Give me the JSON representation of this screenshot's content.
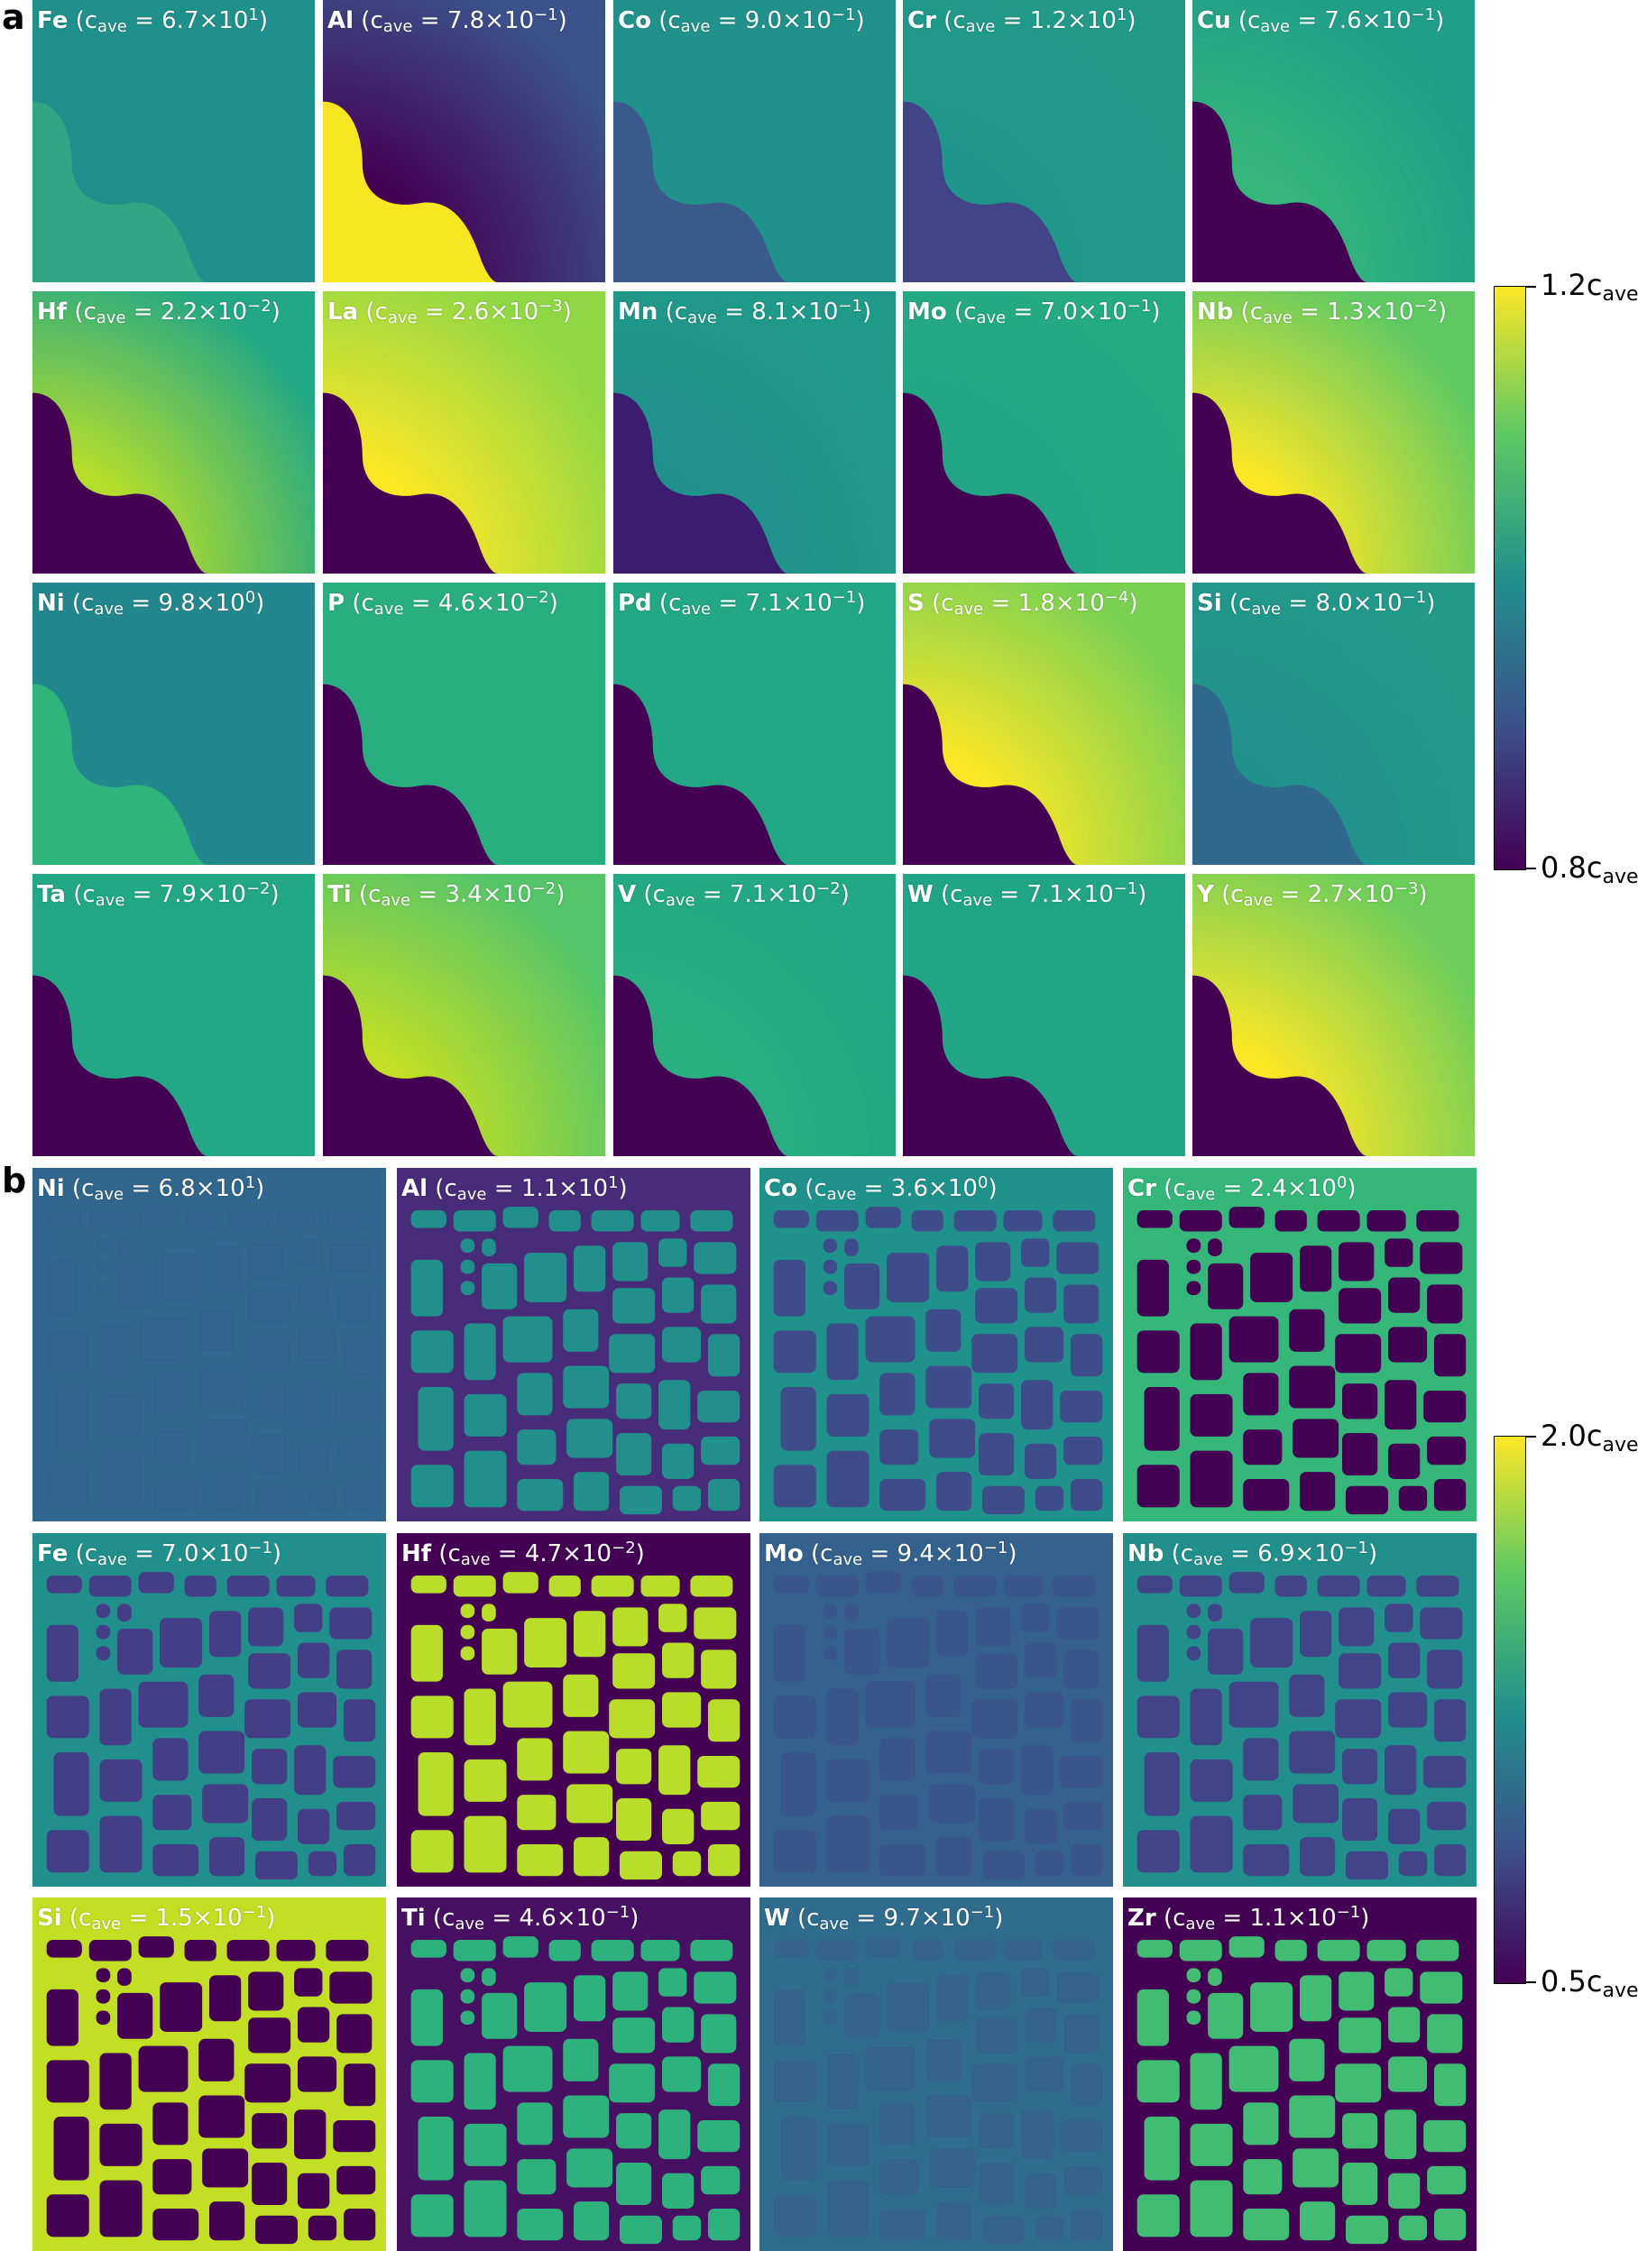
{
  "panel_a": {
    "label": "a",
    "colorbar": {
      "max_label": "1.2c",
      "min_label": "0.8c",
      "sub": "ave",
      "colormap": [
        "#440154",
        "#3b528b",
        "#21918c",
        "#5ec962",
        "#fde725"
      ]
    },
    "tiles": [
      {
        "element": "Fe",
        "mant": "6.7",
        "exp": "1",
        "pattern": "A",
        "bg": "#20908c",
        "blob": "#30a784",
        "rim": "#20908c"
      },
      {
        "element": "Al",
        "mant": "7.8",
        "exp": "−1",
        "pattern": "A",
        "bg": "#3b528b",
        "blob": "#f8e621",
        "rim": "#440154"
      },
      {
        "element": "Co",
        "mant": "9.0",
        "exp": "−1",
        "pattern": "A",
        "bg": "#21918c",
        "blob": "#3b5a8c",
        "rim": "#21918c"
      },
      {
        "element": "Cr",
        "mant": "1.2",
        "exp": "1",
        "pattern": "A",
        "bg": "#219a8a",
        "blob": "#414487",
        "rim": "#1f968b"
      },
      {
        "element": "Cu",
        "mant": "7.6",
        "exp": "−1",
        "pattern": "A",
        "bg": "#1f9e89",
        "blob": "#440154",
        "rim": "#35b779"
      },
      {
        "element": "Hf",
        "mant": "2.2",
        "exp": "−2",
        "pattern": "A",
        "bg": "#22a884",
        "blob": "#440154",
        "rim": "#b5de2b"
      },
      {
        "element": "La",
        "mant": "2.6",
        "exp": "−3",
        "pattern": "A",
        "bg": "#8fd744",
        "blob": "#440154",
        "rim": "#fde725"
      },
      {
        "element": "Mn",
        "mant": "8.1",
        "exp": "−1",
        "pattern": "A",
        "bg": "#1f9a8a",
        "blob": "#3b1c6e",
        "rim": "#21918c"
      },
      {
        "element": "Mo",
        "mant": "7.0",
        "exp": "−1",
        "pattern": "A",
        "bg": "#25ab82",
        "blob": "#440154",
        "rim": "#21a585"
      },
      {
        "element": "Nb",
        "mant": "1.3",
        "exp": "−2",
        "pattern": "A",
        "bg": "#5ec962",
        "blob": "#440154",
        "rim": "#fde725"
      },
      {
        "element": "Ni",
        "mant": "9.8",
        "exp": "0",
        "pattern": "A",
        "bg": "#23888e",
        "blob": "#2fb47c",
        "rim": "#23888e"
      },
      {
        "element": "P",
        "mant": "4.6",
        "exp": "−2",
        "pattern": "A",
        "bg": "#29af7f",
        "blob": "#440154",
        "rim": "#29af7f"
      },
      {
        "element": "Pd",
        "mant": "7.1",
        "exp": "−1",
        "pattern": "A",
        "bg": "#22a884",
        "blob": "#440154",
        "rim": "#22a884"
      },
      {
        "element": "S",
        "mant": "1.8",
        "exp": "−4",
        "pattern": "A",
        "bg": "#7ad151",
        "blob": "#440154",
        "rim": "#fde725"
      },
      {
        "element": "Si",
        "mant": "8.0",
        "exp": "−1",
        "pattern": "A",
        "bg": "#219a8a",
        "blob": "#31688e",
        "rim": "#21918c"
      },
      {
        "element": "Ta",
        "mant": "7.9",
        "exp": "−2",
        "pattern": "A",
        "bg": "#22a884",
        "blob": "#440154",
        "rim": "#22a884"
      },
      {
        "element": "Ti",
        "mant": "3.4",
        "exp": "−2",
        "pattern": "A",
        "bg": "#54c568",
        "blob": "#440154",
        "rim": "#c2df23"
      },
      {
        "element": "V",
        "mant": "7.1",
        "exp": "−2",
        "pattern": "A",
        "bg": "#22a884",
        "blob": "#440154",
        "rim": "#2ab07f"
      },
      {
        "element": "W",
        "mant": "7.1",
        "exp": "−1",
        "pattern": "A",
        "bg": "#21a685",
        "blob": "#440154",
        "rim": "#21a685"
      },
      {
        "element": "Y",
        "mant": "2.7",
        "exp": "−3",
        "pattern": "A",
        "bg": "#6ccd5a",
        "blob": "#440154",
        "rim": "#fde725"
      }
    ]
  },
  "panel_b": {
    "label": "b",
    "colorbar": {
      "max_label": "2.0c",
      "min_label": "0.5c",
      "sub": "ave",
      "colormap": [
        "#440154",
        "#3b528b",
        "#21918c",
        "#5ec962",
        "#fde725"
      ]
    },
    "tiles": [
      {
        "element": "Ni",
        "mant": "6.8",
        "exp": "1",
        "pattern": "B",
        "bg": "#31668e",
        "blob": "#30648e"
      },
      {
        "element": "Al",
        "mant": "1.1",
        "exp": "1",
        "pattern": "B",
        "bg": "#472c7a",
        "blob": "#21908d"
      },
      {
        "element": "Co",
        "mant": "3.6",
        "exp": "0",
        "pattern": "B",
        "bg": "#20928c",
        "blob": "#3e4c8a"
      },
      {
        "element": "Cr",
        "mant": "2.4",
        "exp": "0",
        "pattern": "B",
        "bg": "#35b779",
        "blob": "#440154"
      },
      {
        "element": "Fe",
        "mant": "7.0",
        "exp": "−1",
        "pattern": "B",
        "bg": "#21908d",
        "blob": "#433e85"
      },
      {
        "element": "Hf",
        "mant": "4.7",
        "exp": "−2",
        "pattern": "B",
        "bg": "#440154",
        "blob": "#b8de29"
      },
      {
        "element": "Mo",
        "mant": "9.4",
        "exp": "−1",
        "pattern": "B",
        "bg": "#34618d",
        "blob": "#3a548c"
      },
      {
        "element": "Nb",
        "mant": "6.9",
        "exp": "−1",
        "pattern": "B",
        "bg": "#21908d",
        "blob": "#414487"
      },
      {
        "element": "Si",
        "mant": "1.5",
        "exp": "−1",
        "pattern": "B",
        "bg": "#c2df23",
        "blob": "#440154"
      },
      {
        "element": "Ti",
        "mant": "4.6",
        "exp": "−1",
        "pattern": "B",
        "bg": "#471063",
        "blob": "#2db27d"
      },
      {
        "element": "W",
        "mant": "9.7",
        "exp": "−1",
        "pattern": "B",
        "bg": "#2f6c8e",
        "blob": "#33638d"
      },
      {
        "element": "Zr",
        "mant": "1.1",
        "exp": "−1",
        "pattern": "B",
        "bg": "#440154",
        "blob": "#40bd72"
      }
    ]
  }
}
